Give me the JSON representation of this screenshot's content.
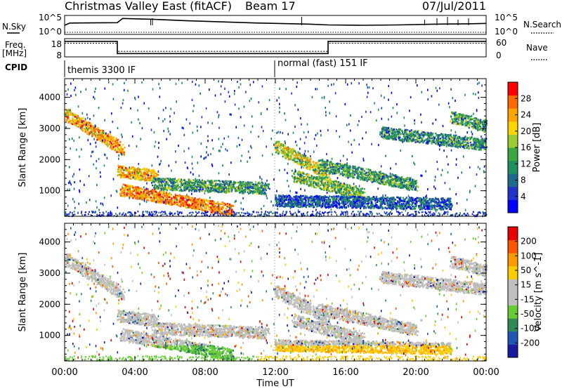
{
  "header": {
    "station": "Christmas Valley East (fitACF)",
    "beam": "Beam 17",
    "date": "07/Jul/2011"
  },
  "left_labels": {
    "nsky": "N.Sky",
    "freq_line1": "Freq.",
    "freq_line2": "[MHz]",
    "cpid": "CPID"
  },
  "right_labels": {
    "nsearch": "N.Search",
    "nave": "Nave"
  },
  "cpid_segments": [
    {
      "label": "themis 3300 IF",
      "start_h": 0,
      "end_h": 12
    },
    {
      "label": "normal (fast) 151 IF",
      "start_h": 12,
      "end_h": 24
    }
  ],
  "colors": {
    "power_scale": [
      "#0000ff",
      "#2233cc",
      "#1c6b8c",
      "#1f8f5f",
      "#3aa640",
      "#9acd32",
      "#ffd400",
      "#ffa500",
      "#ff6a00",
      "#ff0000"
    ],
    "velocity_scale": [
      "#1a1aa0",
      "#1f56b3",
      "#2e8b57",
      "#66cc33",
      "#bfbfbf",
      "#bfbfbf",
      "#ffcc00",
      "#ff9900",
      "#ff5500",
      "#e60000"
    ]
  },
  "chart_data": [
    {
      "type": "line",
      "name": "N.Sky / N.Search noise",
      "ylabel_ticks": [
        "10^5",
        "10^0"
      ],
      "right_ticks": [
        "10^5",
        "10^0"
      ],
      "x": [
        0,
        0.3,
        3,
        3.3,
        5,
        7,
        9,
        11,
        12,
        14,
        15,
        17,
        19,
        21,
        23,
        24
      ],
      "values": [
        2.4,
        3.0,
        3.1,
        4.2,
        4.0,
        3.6,
        3.3,
        3.0,
        2.9,
        2.7,
        2.5,
        2.4,
        2.5,
        2.7,
        2.8,
        2.9
      ],
      "xlim": [
        0,
        24
      ],
      "ylim": [
        0,
        5
      ]
    },
    {
      "type": "line",
      "name": "Frequency and Nave",
      "left_ticks": [
        "18",
        "8"
      ],
      "right_ticks": [
        "60",
        "0"
      ],
      "x": [
        0,
        3,
        3,
        15,
        15,
        24
      ],
      "values": [
        16.5,
        16.5,
        9.8,
        9.8,
        16.5,
        16.5
      ],
      "xlim": [
        0,
        24
      ],
      "ylim": [
        8,
        18
      ]
    },
    {
      "type": "heatmap",
      "name": "Power",
      "ylabel": "Slant Range [km]",
      "y_ticks": [
        "1000",
        "2000",
        "3000",
        "4000"
      ],
      "ylim": [
        180,
        4600
      ],
      "colorbar_label": "Power [dB]",
      "colorbar_ticks": [
        "28",
        "24",
        "20",
        "16",
        "12",
        "8",
        "4"
      ],
      "bands": [
        {
          "h0": 0,
          "r0": 3500,
          "h1": 3.3,
          "r1": 2350,
          "v": 0.75
        },
        {
          "h0": 3,
          "r0": 1650,
          "h1": 5.2,
          "r1": 1500,
          "v": 0.7
        },
        {
          "h0": 3.2,
          "r0": 1050,
          "h1": 9.5,
          "r1": 400,
          "v": 0.8
        },
        {
          "h0": 5,
          "r0": 1250,
          "h1": 11.5,
          "r1": 1100,
          "v": 0.35
        },
        {
          "h0": 12,
          "r0": 2450,
          "h1": 15,
          "r1": 1550,
          "v": 0.55
        },
        {
          "h0": 13,
          "r0": 1500,
          "h1": 17,
          "r1": 900,
          "v": 0.45
        },
        {
          "h0": 14.5,
          "r0": 1850,
          "h1": 20,
          "r1": 1200,
          "v": 0.35
        },
        {
          "h0": 18,
          "r0": 2900,
          "h1": 24,
          "r1": 2500,
          "v": 0.3
        },
        {
          "h0": 22,
          "r0": 3400,
          "h1": 24,
          "r1": 3100,
          "v": 0.35
        },
        {
          "h0": 12,
          "r0": 700,
          "h1": 22,
          "r1": 600,
          "v": 0.15
        }
      ]
    },
    {
      "type": "heatmap",
      "name": "Velocity",
      "ylabel": "Slant Range [km]",
      "y_ticks": [
        "1000",
        "2000",
        "3000",
        "4000"
      ],
      "ylim": [
        180,
        4600
      ],
      "colorbar_label": "Velocity [m s^-1]",
      "colorbar_ticks": [
        "200",
        "100",
        "50",
        "15",
        "-15",
        "-50",
        "-100",
        "-200"
      ],
      "x_ticks": [
        "00:00",
        "04:00",
        "08:00",
        "12:00",
        "16:00",
        "20:00",
        "00:00"
      ],
      "xlabel": "Time UT"
    }
  ]
}
